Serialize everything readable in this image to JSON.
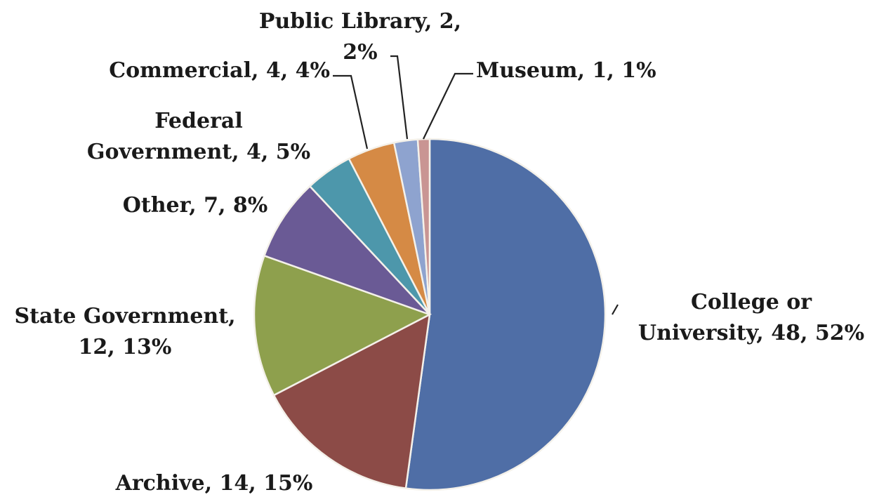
{
  "chart_data": {
    "type": "pie",
    "title": "",
    "start_angle_deg": 0,
    "direction": "clockwise",
    "legend": "none",
    "slices": [
      {
        "label": "College or University",
        "value": 48,
        "percent": "52%",
        "color": "#4f6ea6",
        "label_lines": [
          "College or",
          "University, 48, 52%"
        ]
      },
      {
        "label": "Archive",
        "value": 14,
        "percent": "15%",
        "color": "#8c4b47",
        "label_lines": [
          "Archive, 14, 15%"
        ]
      },
      {
        "label": "State Government",
        "value": 12,
        "percent": "13%",
        "color": "#8ea04d",
        "label_lines": [
          "State Government,",
          "12, 13%"
        ]
      },
      {
        "label": "Other",
        "value": 7,
        "percent": "8%",
        "color": "#6a5a95",
        "label_lines": [
          "Other, 7, 8%"
        ]
      },
      {
        "label": "Federal Government",
        "value": 4,
        "percent": "5%",
        "color": "#4d97ab",
        "label_lines": [
          "Federal",
          "Government, 4, 5%"
        ]
      },
      {
        "label": "Commercial",
        "value": 4,
        "percent": "4%",
        "color": "#d58a45",
        "label_lines": [
          "Commercial, 4, 4%"
        ]
      },
      {
        "label": "Public Library",
        "value": 2,
        "percent": "2%",
        "color": "#8ea3cf",
        "label_lines": [
          "Public Library, 2,",
          "2%"
        ]
      },
      {
        "label": "Museum",
        "value": 1,
        "percent": "1%",
        "color": "#c99593",
        "label_lines": [
          "Museum, 1, 1%"
        ]
      }
    ]
  }
}
